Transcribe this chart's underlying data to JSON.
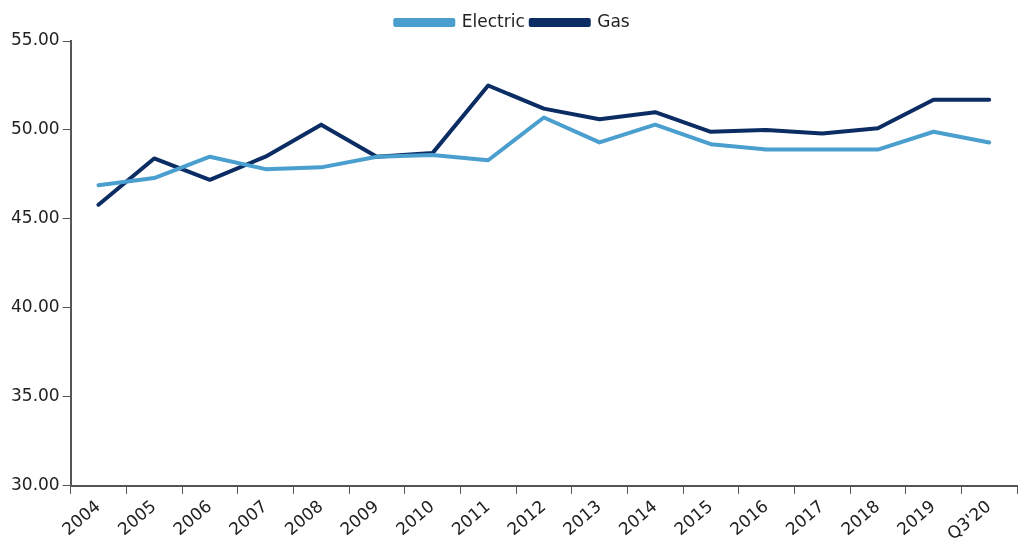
{
  "chart_data": {
    "type": "line",
    "categories": [
      "2004",
      "2005",
      "2006",
      "2007",
      "2008",
      "2009",
      "2010",
      "2011",
      "2012",
      "2013",
      "2014",
      "2015",
      "2016",
      "2017",
      "2018",
      "2019",
      "Q3'20"
    ],
    "series": [
      {
        "name": "Electric",
        "color": "#4a9fcf",
        "values": [
          46.9,
          47.3,
          48.5,
          47.8,
          47.9,
          48.5,
          48.6,
          48.3,
          50.7,
          49.3,
          50.3,
          49.2,
          48.9,
          48.9,
          48.9,
          49.9,
          49.3
        ]
      },
      {
        "name": "Gas",
        "color": "#0b2d63",
        "values": [
          45.8,
          48.4,
          47.2,
          48.5,
          50.3,
          48.5,
          48.7,
          52.5,
          51.2,
          50.6,
          51.0,
          49.9,
          50.0,
          49.8,
          50.1,
          51.7,
          51.7
        ]
      }
    ],
    "ylim": [
      30,
      55
    ],
    "yticks": [
      {
        "value": 30,
        "label": "30.00"
      },
      {
        "value": 35,
        "label": "35.00"
      },
      {
        "value": 40,
        "label": "40.00"
      },
      {
        "value": 45,
        "label": "45.00"
      },
      {
        "value": 50,
        "label": "50.00"
      },
      {
        "value": 55,
        "label": "55.00"
      }
    ],
    "grid": false,
    "legend": "top",
    "marker": "none",
    "line_style": "solid"
  }
}
